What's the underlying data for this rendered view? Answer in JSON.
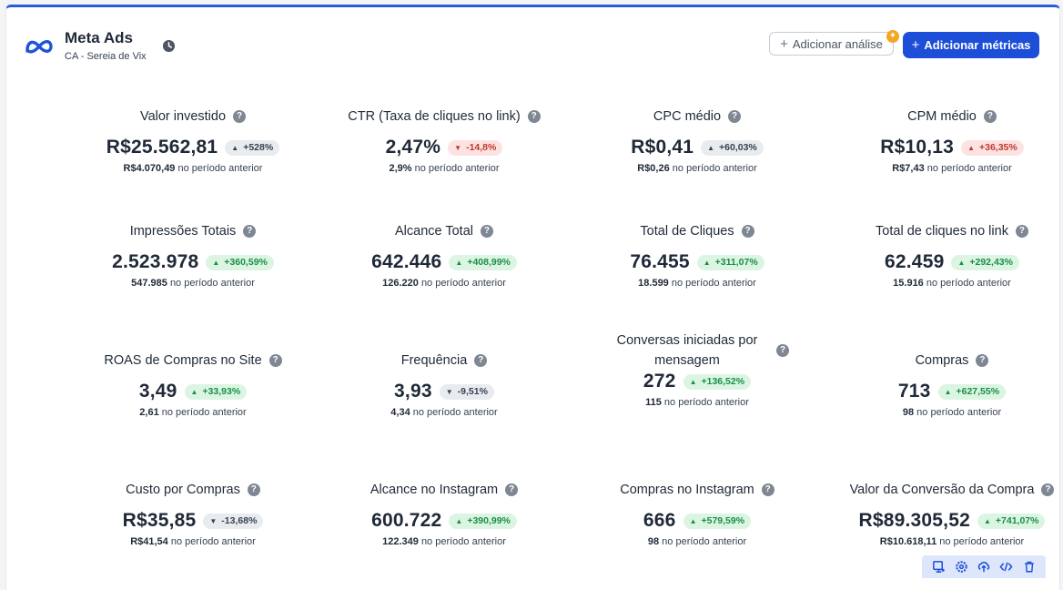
{
  "header": {
    "title": "Meta Ads",
    "subtitle": "CA - Sereia de Vix",
    "add_analysis_label": "Adicionar análise",
    "add_metrics_label": "Adicionar métricas",
    "brand_color": "#1d4ed8"
  },
  "prev_suffix": "no período anterior",
  "metrics": [
    {
      "title": "Valor investido",
      "value": "R$25.562,81",
      "delta": "+528%",
      "trend": "up",
      "tone": "gray",
      "prev": "R$4.070,49"
    },
    {
      "title": "CTR (Taxa de cliques no link)",
      "value": "2,47%",
      "delta": "-14,8%",
      "trend": "down",
      "tone": "red",
      "prev": "2,9%"
    },
    {
      "title": "CPC médio",
      "value": "R$0,41",
      "delta": "+60,03%",
      "trend": "up",
      "tone": "gray",
      "prev": "R$0,26"
    },
    {
      "title": "CPM médio",
      "value": "R$10,13",
      "delta": "+36,35%",
      "trend": "up",
      "tone": "red",
      "prev": "R$7,43"
    },
    {
      "title": "Impressões Totais",
      "value": "2.523.978",
      "delta": "+360,59%",
      "trend": "up",
      "tone": "green",
      "prev": "547.985"
    },
    {
      "title": "Alcance Total",
      "value": "642.446",
      "delta": "+408,99%",
      "trend": "up",
      "tone": "green",
      "prev": "126.220"
    },
    {
      "title": "Total de Cliques",
      "value": "76.455",
      "delta": "+311,07%",
      "trend": "up",
      "tone": "green",
      "prev": "18.599"
    },
    {
      "title": "Total de cliques no link",
      "value": "62.459",
      "delta": "+292,43%",
      "trend": "up",
      "tone": "green",
      "prev": "15.916"
    },
    {
      "title": "ROAS de Compras no Site",
      "value": "3,49",
      "delta": "+33,93%",
      "trend": "up",
      "tone": "green",
      "prev": "2,61"
    },
    {
      "title": "Frequência",
      "value": "3,93",
      "delta": "-9,51%",
      "trend": "down",
      "tone": "gray",
      "prev": "4,34"
    },
    {
      "title": "Conversas iniciadas por mensagem",
      "value": "272",
      "delta": "+136,52%",
      "trend": "up",
      "tone": "green",
      "prev": "115"
    },
    {
      "title": "Compras",
      "value": "713",
      "delta": "+627,55%",
      "trend": "up",
      "tone": "green",
      "prev": "98"
    },
    {
      "title": "Custo por Compras",
      "value": "R$35,85",
      "delta": "-13,68%",
      "trend": "down",
      "tone": "gray",
      "prev": "R$41,54"
    },
    {
      "title": "Alcance no Instagram",
      "value": "600.722",
      "delta": "+390,99%",
      "trend": "up",
      "tone": "green",
      "prev": "122.349"
    },
    {
      "title": "Compras no Instagram",
      "value": "666",
      "delta": "+579,59%",
      "trend": "up",
      "tone": "green",
      "prev": "98"
    },
    {
      "title": "Valor da Conversão da Compra",
      "value": "R$89.305,52",
      "delta": "+741,07%",
      "trend": "up",
      "tone": "green",
      "prev": "R$10.618,11"
    }
  ],
  "toolbar": {
    "icons": [
      "present-icon",
      "settings-icon",
      "upload-icon",
      "code-icon",
      "trash-icon"
    ]
  }
}
